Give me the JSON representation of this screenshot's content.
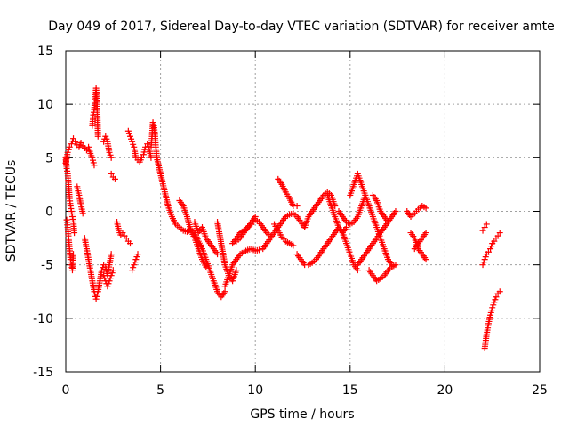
{
  "chart_data": {
    "type": "scatter",
    "title": "Day 049 of 2017, Sidereal Day-to-day VTEC variation (SDTVAR) for receiver amte",
    "xlabel": "GPS time / hours",
    "ylabel": "SDTVAR / TECUs",
    "xlim": [
      0,
      25
    ],
    "ylim": [
      -15,
      15
    ],
    "xticks": [
      "0",
      "5",
      "10",
      "15",
      "20",
      "25"
    ],
    "yticks": [
      "-15",
      "-10",
      "-5",
      "0",
      "5",
      "10",
      "15"
    ],
    "grid": true,
    "marker": "+",
    "color": "#ff0000",
    "series": [
      {
        "x": [
          0.0,
          0.1,
          0.2,
          0.3,
          0.4,
          0.5,
          0.6,
          0.7,
          0.8,
          0.9,
          1.0,
          1.1,
          1.2,
          1.3,
          1.4,
          1.5
        ],
        "y": [
          4.5,
          5.5,
          6.0,
          6.3,
          6.8,
          6.5,
          6.2,
          6.0,
          6.4,
          6.1,
          5.9,
          5.7,
          6.0,
          5.4,
          5.0,
          4.3
        ]
      },
      {
        "x": [
          0.0,
          0.05,
          0.1,
          0.15,
          0.2,
          0.25,
          0.3,
          0.35,
          0.4,
          0.45
        ],
        "y": [
          5.0,
          4.0,
          3.5,
          2.5,
          1.2,
          0.5,
          0.0,
          -0.5,
          -1.0,
          -2.0
        ]
      },
      {
        "x": [
          0.05,
          0.1,
          0.15,
          0.2,
          0.25,
          0.3,
          0.35,
          0.4
        ],
        "y": [
          -0.8,
          -1.5,
          -2.5,
          -3.5,
          -4.5,
          -5.0,
          -5.5,
          -4.0
        ]
      },
      {
        "x": [
          0.6,
          0.7,
          0.8,
          0.9
        ],
        "y": [
          2.3,
          1.5,
          0.6,
          -0.2
        ]
      },
      {
        "x": [
          1.0,
          1.1,
          1.2,
          1.3,
          1.4,
          1.5,
          1.6,
          1.7,
          1.8,
          1.9,
          2.0,
          2.1,
          2.2,
          2.3,
          2.4
        ],
        "y": [
          -2.5,
          -3.5,
          -4.5,
          -5.5,
          -6.5,
          -7.5,
          -8.2,
          -7.5,
          -6.5,
          -5.5,
          -5.0,
          -5.2,
          -6.0,
          -5.0,
          -4.0
        ]
      },
      {
        "x": [
          1.4,
          1.45,
          1.5,
          1.55,
          1.6,
          1.65,
          1.7
        ],
        "y": [
          8.0,
          9.0,
          9.5,
          10.5,
          11.5,
          10.0,
          7.0
        ]
      },
      {
        "x": [
          2.0,
          2.1,
          2.2,
          2.3,
          2.4
        ],
        "y": [
          6.5,
          7.0,
          6.5,
          5.5,
          5.0
        ]
      },
      {
        "x": [
          2.0,
          2.1,
          2.2,
          2.3,
          2.4,
          2.5
        ],
        "y": [
          -6.0,
          -6.5,
          -7.0,
          -6.5,
          -6.0,
          -5.5
        ]
      },
      {
        "x": [
          2.4,
          2.5,
          2.6
        ],
        "y": [
          3.5,
          3.2,
          3.0
        ]
      },
      {
        "x": [
          2.7,
          2.8,
          2.9,
          3.0,
          3.1,
          3.2,
          3.3,
          3.4
        ],
        "y": [
          -1.0,
          -1.8,
          -2.2,
          -2.0,
          -2.3,
          -2.5,
          -2.8,
          -3.0
        ]
      },
      {
        "x": [
          3.5,
          3.6,
          3.7,
          3.8
        ],
        "y": [
          -5.5,
          -5.0,
          -4.5,
          -4.0
        ]
      },
      {
        "x": [
          3.3,
          3.4,
          3.5,
          3.6,
          3.7,
          3.8,
          3.9,
          4.0
        ],
        "y": [
          7.5,
          7.0,
          6.5,
          6.0,
          5.0,
          4.8,
          4.6,
          5.0
        ]
      },
      {
        "x": [
          4.0,
          4.1,
          4.2,
          4.3,
          4.4,
          4.5
        ],
        "y": [
          5.0,
          5.3,
          6.0,
          6.3,
          5.8,
          5.0
        ]
      },
      {
        "x": [
          4.5,
          4.55,
          4.6,
          4.65,
          4.7,
          4.75,
          4.8
        ],
        "y": [
          6.0,
          7.0,
          8.3,
          8.0,
          7.2,
          6.0,
          5.2
        ]
      },
      {
        "x": [
          4.8,
          5.0,
          5.2,
          5.4,
          5.6,
          5.8,
          6.0,
          6.2,
          6.4,
          6.6,
          6.8,
          7.0,
          7.2,
          7.4,
          7.6,
          7.8,
          8.0,
          8.2,
          8.4
        ],
        "y": [
          5.0,
          3.5,
          2.0,
          0.5,
          -0.5,
          -1.2,
          -1.5,
          -1.8,
          -1.9,
          -1.7,
          -2.0,
          -2.8,
          -3.5,
          -4.5,
          -5.5,
          -6.5,
          -7.5,
          -8.0,
          -7.5
        ]
      },
      {
        "x": [
          6.0,
          6.2,
          6.4,
          6.6,
          6.8,
          7.0,
          7.2,
          7.4
        ],
        "y": [
          1.0,
          0.5,
          -0.5,
          -1.8,
          -2.5,
          -3.5,
          -4.5,
          -5.2
        ]
      },
      {
        "x": [
          6.8,
          7.0,
          7.2,
          7.4,
          7.6,
          7.8,
          8.0
        ],
        "y": [
          -1.0,
          -2.0,
          -1.5,
          -2.5,
          -3.0,
          -3.5,
          -4.0
        ]
      },
      {
        "x": [
          8.0,
          8.2,
          8.4,
          8.6,
          8.8,
          9.0
        ],
        "y": [
          -1.0,
          -3.0,
          -5.0,
          -6.0,
          -6.5,
          -5.5
        ]
      },
      {
        "x": [
          8.4,
          8.6,
          8.8,
          9.0,
          9.2,
          9.4,
          9.6,
          9.8,
          10.0,
          10.2
        ],
        "y": [
          -7.0,
          -6.0,
          -5.0,
          -4.5,
          -4.0,
          -3.8,
          -3.6,
          -3.5,
          -3.7,
          -3.6
        ]
      },
      {
        "x": [
          8.8,
          9.0,
          9.2,
          9.4,
          9.6,
          9.8,
          10.0,
          10.2,
          10.4,
          10.6,
          10.8
        ],
        "y": [
          -3.0,
          -2.5,
          -2.0,
          -1.8,
          -1.5,
          -1.2,
          -0.8,
          -1.0,
          -1.5,
          -2.0,
          -2.3
        ]
      },
      {
        "x": [
          9.0,
          9.2,
          9.4,
          9.6,
          9.8,
          10.0
        ],
        "y": [
          -2.8,
          -2.5,
          -2.0,
          -1.5,
          -1.0,
          -0.5
        ]
      },
      {
        "x": [
          10.4,
          10.6,
          10.8,
          11.0,
          11.2,
          11.4,
          11.6,
          11.8,
          12.0,
          12.2,
          12.4,
          12.6
        ],
        "y": [
          -3.5,
          -3.0,
          -2.5,
          -2.0,
          -1.5,
          -1.0,
          -0.5,
          -0.3,
          -0.2,
          -0.5,
          -1.0,
          -1.5
        ]
      },
      {
        "x": [
          11.2,
          11.4,
          11.6,
          11.8,
          12.0,
          12.2
        ],
        "y": [
          3.0,
          2.5,
          1.8,
          1.2,
          0.5,
          0.5
        ]
      },
      {
        "x": [
          11.0,
          11.2,
          11.4,
          11.6,
          11.8,
          12.0
        ],
        "y": [
          -1.2,
          -1.8,
          -2.4,
          -2.8,
          -3.0,
          -3.2
        ]
      },
      {
        "x": [
          12.2,
          12.4,
          12.6,
          12.8,
          13.0,
          13.2,
          13.4,
          13.6,
          13.8,
          14.0,
          14.2,
          14.4,
          14.6,
          14.8,
          15.0,
          15.2,
          15.4
        ],
        "y": [
          -4.0,
          -4.5,
          -5.0,
          -5.0,
          -4.8,
          -4.5,
          -4.0,
          -3.5,
          -3.0,
          -2.5,
          -2.0,
          -1.5,
          -2.0,
          -3.0,
          -4.0,
          -5.0,
          -5.5
        ]
      },
      {
        "x": [
          12.6,
          12.8,
          13.0,
          13.2,
          13.4,
          13.6,
          13.8,
          14.0,
          14.2
        ],
        "y": [
          -1.5,
          -0.5,
          0.0,
          0.5,
          1.0,
          1.5,
          1.8,
          1.5,
          0.5
        ]
      },
      {
        "x": [
          13.8,
          14.0,
          14.2,
          14.4,
          14.6,
          14.8
        ],
        "y": [
          1.5,
          0.5,
          -0.5,
          -1.5,
          -2.0,
          -1.5
        ]
      },
      {
        "x": [
          14.4,
          14.6,
          14.8,
          15.0,
          15.2,
          15.4,
          15.6,
          15.8
        ],
        "y": [
          0.0,
          -0.5,
          -1.0,
          -1.2,
          -1.0,
          -0.5,
          0.5,
          1.5
        ]
      },
      {
        "x": [
          15.0,
          15.2,
          15.4,
          15.6,
          15.8,
          16.0,
          16.2,
          16.4,
          16.6,
          16.8,
          17.0,
          17.2
        ],
        "y": [
          1.5,
          2.5,
          3.5,
          2.5,
          1.5,
          0.5,
          -0.5,
          -1.5,
          -2.5,
          -3.5,
          -4.5,
          -5.0
        ]
      },
      {
        "x": [
          15.4,
          15.6,
          15.8,
          16.0,
          16.2,
          16.4,
          16.6,
          16.8,
          17.0,
          17.2,
          17.4
        ],
        "y": [
          -5.0,
          -4.5,
          -4.0,
          -3.5,
          -3.0,
          -2.5,
          -2.0,
          -1.5,
          -1.0,
          -0.5,
          0.0
        ]
      },
      {
        "x": [
          16.0,
          16.2,
          16.4,
          16.6,
          16.8,
          17.0,
          17.2,
          17.4
        ],
        "y": [
          -5.5,
          -6.0,
          -6.5,
          -6.3,
          -6.0,
          -5.5,
          -5.2,
          -5.0
        ]
      },
      {
        "x": [
          16.2,
          16.4,
          16.6,
          16.8,
          17.0
        ],
        "y": [
          1.5,
          1.0,
          0.0,
          -0.5,
          -1.0
        ]
      },
      {
        "x": [
          18.0,
          18.2,
          18.4,
          18.6,
          18.8,
          19.0
        ],
        "y": [
          0.0,
          -0.5,
          -0.2,
          0.2,
          0.5,
          0.3
        ]
      },
      {
        "x": [
          18.2,
          18.4,
          18.6,
          18.8,
          19.0
        ],
        "y": [
          -2.0,
          -2.5,
          -3.5,
          -4.0,
          -4.5
        ]
      },
      {
        "x": [
          18.4,
          18.6,
          18.8,
          19.0
        ],
        "y": [
          -3.5,
          -3.0,
          -2.5,
          -2.0
        ]
      },
      {
        "x": [
          22.0,
          22.1,
          22.2,
          22.3,
          22.4,
          22.5,
          22.6,
          22.7,
          22.8,
          22.9
        ],
        "y": [
          -5.0,
          -4.5,
          -4.0,
          -3.8,
          -3.5,
          -3.0,
          -2.8,
          -2.5,
          -2.3,
          -2.0
        ]
      },
      {
        "x": [
          22.0,
          22.1,
          22.2
        ],
        "y": [
          -1.8,
          -1.5,
          -1.2
        ]
      },
      {
        "x": [
          22.1,
          22.2,
          22.3,
          22.4,
          22.5,
          22.6,
          22.7,
          22.8,
          22.9
        ],
        "y": [
          -12.8,
          -11.5,
          -10.5,
          -9.7,
          -9.0,
          -8.5,
          -8.0,
          -7.7,
          -7.5
        ]
      }
    ]
  }
}
